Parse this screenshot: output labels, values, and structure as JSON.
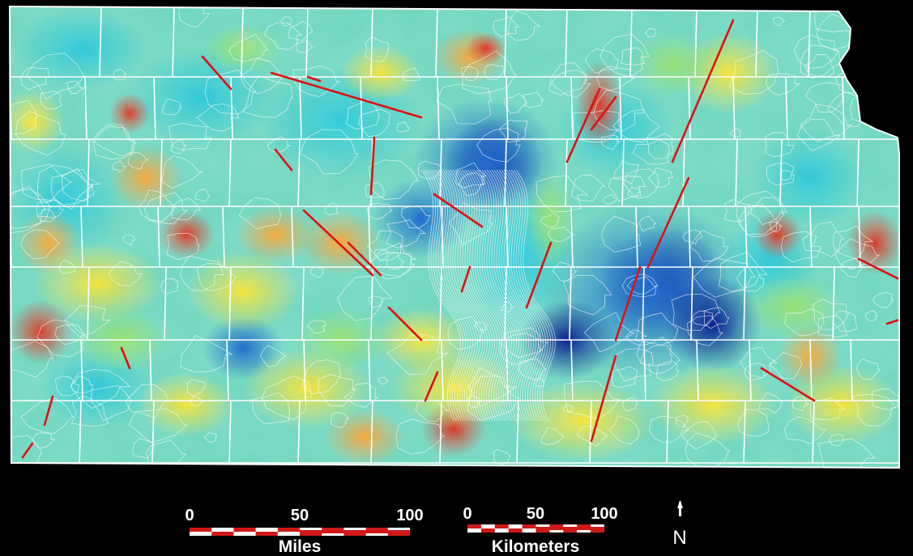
{
  "scales": {
    "miles": {
      "ticks": [
        "0",
        "50",
        "100"
      ],
      "unit": "Miles"
    },
    "kilometers": {
      "ticks": [
        "0",
        "50",
        "100"
      ],
      "unit": "Kilometers"
    }
  },
  "north_arrow": {
    "label": "N"
  },
  "colors": {
    "background": "#000000",
    "county_lines": "#ffffff",
    "faults": "#e01010",
    "scale_red": "#d01818",
    "scale_white": "#ffffff",
    "ramp": [
      "#0b1f8a",
      "#1f64c8",
      "#2fc6d6",
      "#6ee0b0",
      "#c9e84a",
      "#f2e23a",
      "#f2a23a",
      "#d83a2a"
    ]
  }
}
